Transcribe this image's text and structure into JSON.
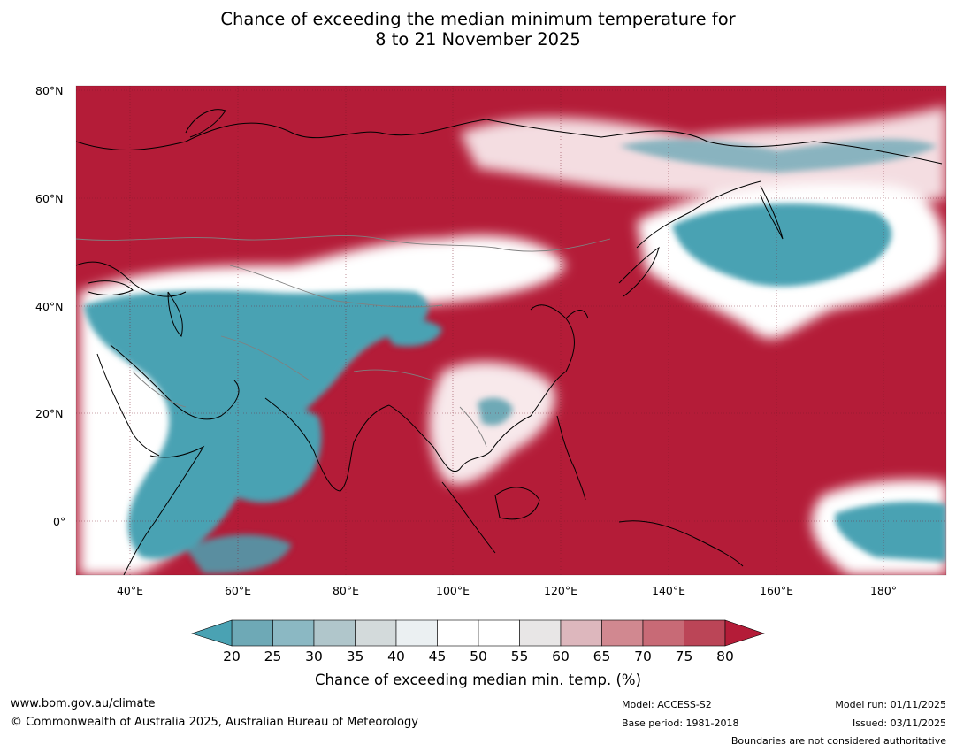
{
  "title": {
    "line1": "Chance of exceeding the median minimum temperature for",
    "line2": "8 to 21 November 2025"
  },
  "map": {
    "lat_labels": [
      "80°N",
      "60°N",
      "40°N",
      "20°N",
      "0°"
    ],
    "lon_labels": [
      "40°E",
      "60°E",
      "80°E",
      "100°E",
      "120°E",
      "140°E",
      "160°E",
      "180°"
    ],
    "lat_range": [
      -10,
      81
    ],
    "lon_range": [
      30,
      191
    ],
    "background_color": "#b41c38",
    "cool_color": "#4aa2b3"
  },
  "colorbar": {
    "ticks": [
      "20",
      "25",
      "30",
      "35",
      "40",
      "45",
      "50",
      "55",
      "60",
      "65",
      "70",
      "75",
      "80"
    ],
    "colors": [
      "#4aa2b3",
      "#6ea9b6",
      "#8bb8c3",
      "#b0c6cb",
      "#d3dadb",
      "#ebf0f2",
      "#ffffff",
      "#ffffff",
      "#e8e6e6",
      "#ddb7bd",
      "#d18890",
      "#c86a76",
      "#bb4557",
      "#b41c38"
    ],
    "label": "Chance of exceeding median min. temp. (%)"
  },
  "footer": {
    "website": "www.bom.gov.au/climate",
    "copyright": "© Commonwealth of Australia 2025, Australian Bureau of Meteorology",
    "model": "Model: ACCESS-S2",
    "base_period": "Base period: 1981-2018",
    "model_run": "Model run: 01/11/2025",
    "issued": "Issued: 03/11/2025",
    "boundaries": "Boundaries are not considered authoritative"
  }
}
